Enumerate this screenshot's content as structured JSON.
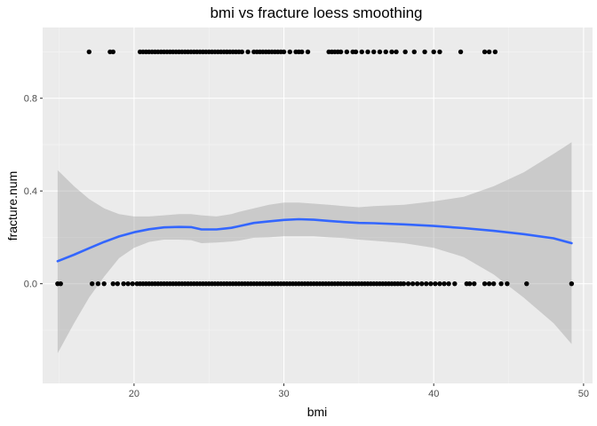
{
  "chart_data": {
    "type": "scatter",
    "title": "bmi vs fracture loess smoothing",
    "xlabel": "bmi",
    "ylabel": "fracture.num",
    "xlim": [
      13.9,
      50.6
    ],
    "ylim": [
      -0.43,
      1.105
    ],
    "x_ticks": [
      20,
      30,
      40,
      50
    ],
    "x_tick_labels": [
      "20",
      "30",
      "40",
      "50"
    ],
    "y_ticks": [
      0.0,
      0.4,
      0.8
    ],
    "y_tick_labels": [
      "0.0",
      "0.4",
      "0.8"
    ],
    "grid": true,
    "points_y1": [
      17.0,
      18.4,
      18.6,
      20.4,
      20.6,
      20.8,
      21.0,
      21.2,
      21.4,
      21.6,
      21.8,
      22.0,
      22.2,
      22.4,
      22.6,
      22.8,
      23.0,
      23.2,
      23.4,
      23.6,
      23.8,
      24.0,
      24.2,
      24.4,
      24.6,
      24.8,
      25.0,
      25.2,
      25.4,
      25.6,
      25.8,
      26.0,
      26.2,
      26.4,
      26.6,
      26.8,
      27.0,
      27.2,
      27.6,
      28.0,
      28.2,
      28.4,
      28.6,
      28.8,
      29.0,
      29.2,
      29.4,
      29.6,
      29.8,
      30.0,
      30.4,
      30.8,
      31.0,
      31.2,
      31.6,
      33.0,
      33.2,
      33.4,
      33.6,
      33.8,
      34.2,
      34.6,
      34.8,
      35.2,
      35.6,
      36.0,
      36.4,
      36.8,
      37.2,
      37.5,
      38.1,
      38.7,
      39.4,
      40.0,
      40.4,
      41.8,
      43.4,
      43.7,
      44.1
    ],
    "points_y0": [
      14.9,
      15.1,
      17.2,
      17.6,
      18.0,
      18.6,
      18.9,
      19.3,
      19.6,
      19.9,
      20.2,
      20.4,
      20.6,
      20.8,
      21.0,
      21.2,
      21.4,
      21.6,
      21.8,
      22.0,
      22.2,
      22.4,
      22.6,
      22.8,
      23.0,
      23.2,
      23.4,
      23.6,
      23.8,
      24.0,
      24.2,
      24.4,
      24.6,
      24.8,
      25.0,
      25.2,
      25.4,
      25.6,
      25.8,
      26.0,
      26.2,
      26.4,
      26.6,
      26.8,
      27.0,
      27.2,
      27.4,
      27.6,
      27.8,
      28.0,
      28.2,
      28.4,
      28.6,
      28.8,
      29.0,
      29.2,
      29.4,
      29.6,
      29.8,
      30.0,
      30.2,
      30.4,
      30.6,
      30.8,
      31.0,
      31.2,
      31.4,
      31.6,
      31.8,
      32.0,
      32.2,
      32.4,
      32.6,
      32.8,
      33.0,
      33.2,
      33.4,
      33.6,
      33.8,
      34.0,
      34.2,
      34.4,
      34.6,
      34.8,
      35.0,
      35.2,
      35.4,
      35.6,
      35.8,
      36.0,
      36.2,
      36.4,
      36.6,
      36.8,
      37.0,
      37.2,
      37.4,
      37.6,
      37.8,
      38.0,
      38.3,
      38.6,
      38.9,
      39.2,
      39.5,
      39.8,
      40.1,
      40.4,
      40.7,
      41.0,
      41.4,
      42.2,
      42.4,
      42.7,
      43.4,
      43.7,
      44.0,
      44.5,
      44.9,
      46.2,
      49.2
    ],
    "series": [
      {
        "name": "loess fit",
        "color": "#3366FF",
        "x": [
          14.9,
          16.0,
          17.0,
          18.0,
          19.0,
          20.0,
          21.0,
          22.0,
          23.0,
          23.8,
          24.5,
          25.5,
          26.5,
          27.0,
          28.0,
          29.0,
          30.0,
          31.0,
          32.0,
          33.0,
          34.0,
          35.0,
          36.0,
          38.0,
          40.0,
          42.0,
          44.0,
          46.0,
          48.0,
          49.2
        ],
        "y": [
          0.097,
          0.125,
          0.153,
          0.18,
          0.204,
          0.222,
          0.235,
          0.243,
          0.245,
          0.244,
          0.234,
          0.234,
          0.241,
          0.248,
          0.262,
          0.269,
          0.275,
          0.278,
          0.276,
          0.271,
          0.266,
          0.262,
          0.261,
          0.256,
          0.249,
          0.24,
          0.228,
          0.214,
          0.196,
          0.175
        ]
      },
      {
        "name": "confidence band upper",
        "color": "#999999",
        "y": [
          0.49,
          0.42,
          0.365,
          0.325,
          0.3,
          0.29,
          0.29,
          0.295,
          0.3,
          0.3,
          0.295,
          0.29,
          0.3,
          0.31,
          0.325,
          0.34,
          0.35,
          0.35,
          0.345,
          0.34,
          0.335,
          0.33,
          0.335,
          0.34,
          0.355,
          0.375,
          0.42,
          0.48,
          0.56,
          0.61
        ]
      },
      {
        "name": "confidence band lower",
        "color": "#999999",
        "y": [
          -0.3,
          -0.17,
          -0.06,
          0.03,
          0.11,
          0.155,
          0.18,
          0.19,
          0.19,
          0.188,
          0.175,
          0.178,
          0.182,
          0.186,
          0.198,
          0.2,
          0.205,
          0.205,
          0.205,
          0.2,
          0.197,
          0.19,
          0.185,
          0.175,
          0.155,
          0.115,
          0.04,
          -0.06,
          -0.17,
          -0.26
        ]
      }
    ],
    "colors": {
      "panel_bg": "#EBEBEB",
      "grid_major": "#FFFFFF",
      "ribbon": "#999999",
      "point": "#000000"
    }
  }
}
